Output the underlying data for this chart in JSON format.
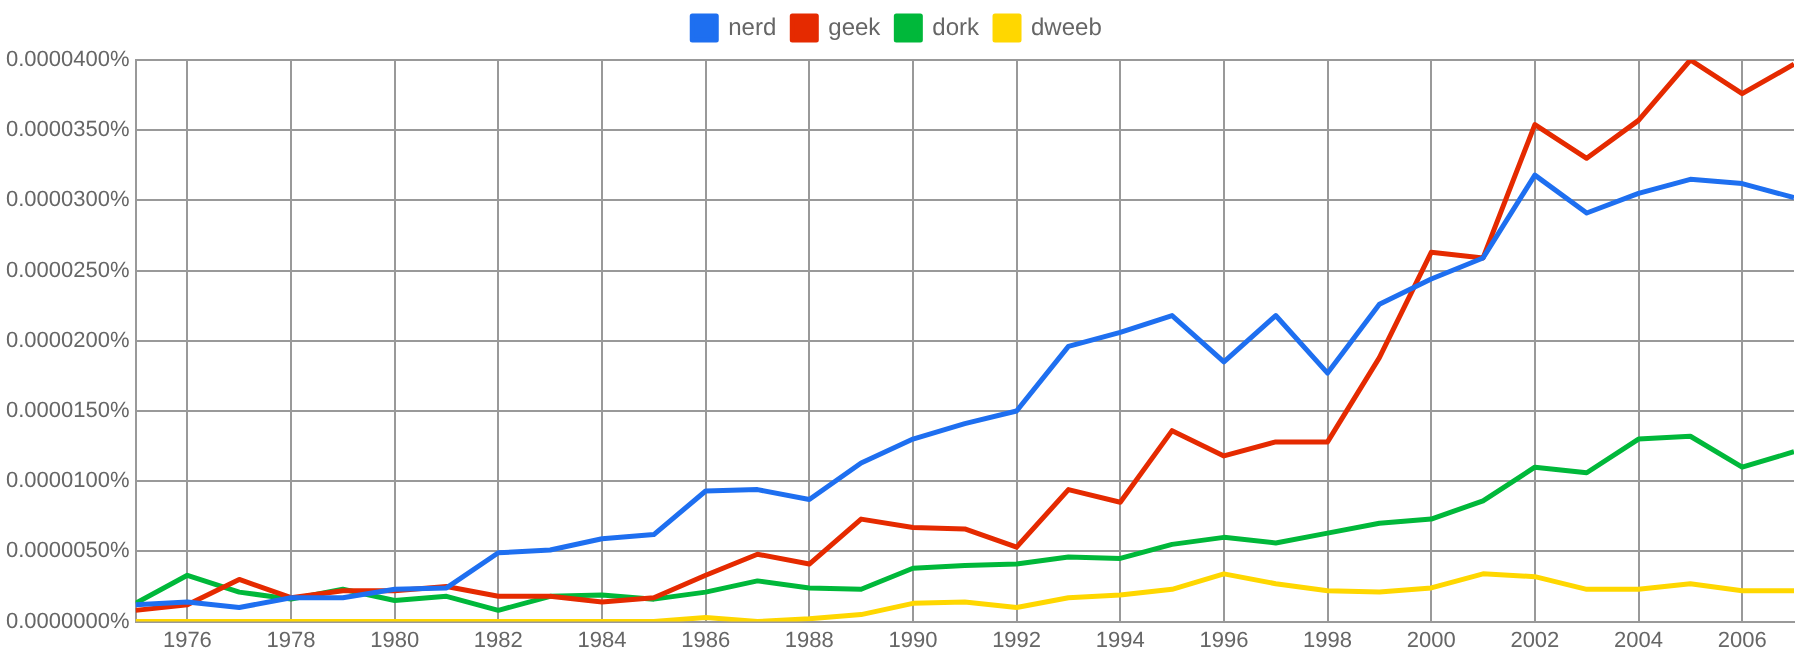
{
  "chart_data": {
    "type": "line",
    "x": [
      1975,
      1976,
      1977,
      1978,
      1979,
      1980,
      1981,
      1982,
      1983,
      1984,
      1985,
      1986,
      1987,
      1988,
      1989,
      1990,
      1991,
      1992,
      1993,
      1994,
      1995,
      1996,
      1997,
      1998,
      1999,
      2000,
      2001,
      2002,
      2003,
      2004,
      2005,
      2006,
      2007
    ],
    "series": [
      {
        "name": "nerd",
        "color": "#1e6ff0",
        "values": [
          1.2e-06,
          1.4e-06,
          1e-06,
          1.7e-06,
          1.7e-06,
          2.3e-06,
          2.4e-06,
          4.9e-06,
          5.1e-06,
          5.9e-06,
          6.2e-06,
          9.3e-06,
          9.4e-06,
          8.7e-06,
          1.13e-05,
          1.3e-05,
          1.41e-05,
          1.5e-05,
          1.96e-05,
          2.06e-05,
          2.18e-05,
          1.85e-05,
          2.18e-05,
          1.77e-05,
          2.26e-05,
          2.44e-05,
          2.59e-05,
          3.18e-05,
          2.91e-05,
          3.05e-05,
          3.15e-05,
          3.12e-05,
          3.02e-05
        ]
      },
      {
        "name": "geek",
        "color": "#e52a00",
        "values": [
          8e-07,
          1.2e-06,
          3e-06,
          1.7e-06,
          2.2e-06,
          2.2e-06,
          2.5e-06,
          1.8e-06,
          1.8e-06,
          1.4e-06,
          1.7e-06,
          3.3e-06,
          4.8e-06,
          4.1e-06,
          7.3e-06,
          6.7e-06,
          6.6e-06,
          5.3e-06,
          9.4e-06,
          8.5e-06,
          1.36e-05,
          1.18e-05,
          1.28e-05,
          1.28e-05,
          1.88e-05,
          2.63e-05,
          2.59e-05,
          3.54e-05,
          3.3e-05,
          3.57e-05,
          4e-05,
          3.76e-05,
          3.97e-05
        ]
      },
      {
        "name": "dork",
        "color": "#00b83a",
        "values": [
          1.3e-06,
          3.3e-06,
          2.1e-06,
          1.6e-06,
          2.3e-06,
          1.5e-06,
          1.8e-06,
          8e-07,
          1.8e-06,
          1.9e-06,
          1.6e-06,
          2.1e-06,
          2.9e-06,
          2.4e-06,
          2.3e-06,
          3.8e-06,
          4e-06,
          4.1e-06,
          4.6e-06,
          4.5e-06,
          5.5e-06,
          6e-06,
          5.6e-06,
          6.3e-06,
          7e-06,
          7.3e-06,
          8.6e-06,
          1.1e-05,
          1.06e-05,
          1.3e-05,
          1.32e-05,
          1.1e-05,
          1.21e-05
        ]
      },
      {
        "name": "dweeb",
        "color": "#ffd700",
        "values": [
          0,
          0,
          0,
          0,
          0,
          0,
          0,
          0,
          0,
          0,
          0,
          3e-07,
          0,
          2e-07,
          5e-07,
          1.3e-06,
          1.4e-06,
          1e-06,
          1.7e-06,
          1.9e-06,
          2.3e-06,
          3.4e-06,
          2.7e-06,
          2.2e-06,
          2.1e-06,
          2.4e-06,
          3.4e-06,
          3.2e-06,
          2.3e-06,
          2.3e-06,
          2.7e-06,
          2.2e-06,
          2.2e-06
        ]
      }
    ],
    "xlim": [
      1975,
      2007
    ],
    "xticks": [
      1976,
      1978,
      1980,
      1982,
      1984,
      1986,
      1988,
      1990,
      1992,
      1994,
      1996,
      1998,
      2000,
      2002,
      2004,
      2006
    ],
    "ylim": [
      0,
      4e-05
    ],
    "yticks": [
      {
        "value": 0,
        "label": "0.0000000%"
      },
      {
        "value": 5e-06,
        "label": "0.0000050%"
      },
      {
        "value": 1e-05,
        "label": "0.0000100%"
      },
      {
        "value": 1.5e-05,
        "label": "0.0000150%"
      },
      {
        "value": 2e-05,
        "label": "0.0000200%"
      },
      {
        "value": 2.5e-05,
        "label": "0.0000250%"
      },
      {
        "value": 3e-05,
        "label": "0.0000300%"
      },
      {
        "value": 3.5e-05,
        "label": "0.0000350%"
      },
      {
        "value": 4e-05,
        "label": "0.0000400%"
      }
    ],
    "grid": true,
    "legend": "top",
    "marker": "none",
    "line_style": "solid"
  }
}
